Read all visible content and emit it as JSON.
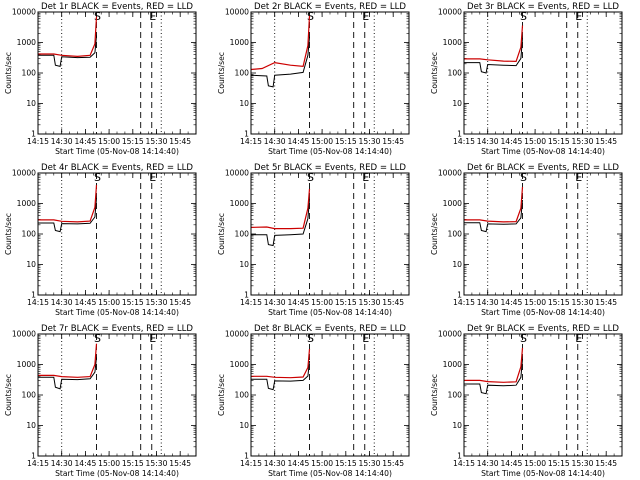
{
  "colors": {
    "background": "#ffffff",
    "events": "#000000",
    "lld": "#cc0000"
  },
  "chart_data": [
    {
      "type": "line",
      "title": "Det 1r BLACK = Events, RED = LLD",
      "xlabel": "Start Time (05-Nov-08 14:14:40)",
      "ylabel": "Counts/sec",
      "xlim": [
        "14:15",
        "15:55"
      ],
      "ylim": [
        1,
        10000
      ],
      "yscale": "log",
      "x_tick_labels": [
        "14:15",
        "14:30",
        "14:45",
        "15:00",
        "15:15",
        "15:30",
        "15:45"
      ],
      "y_tick_labels": [
        "1",
        "10",
        "100",
        "1000",
        "10000"
      ],
      "markers": [
        {
          "time": "14:30",
          "style": "dotted"
        },
        {
          "time": "14:52",
          "style": "dashed",
          "label": "S"
        },
        {
          "time": "15:20",
          "style": "dashed"
        },
        {
          "time": "15:27",
          "style": "dashed",
          "label": "E"
        },
        {
          "time": "15:33",
          "style": "dotted"
        }
      ],
      "series": [
        {
          "name": "Events",
          "color": "#000000",
          "x": [
            "14:15",
            "14:25",
            "14:26",
            "14:29",
            "14:30",
            "14:40",
            "14:48",
            "14:51",
            "14:52"
          ],
          "y": [
            380,
            380,
            180,
            165,
            340,
            320,
            330,
            460,
            1700
          ]
        },
        {
          "name": "LLD",
          "color": "#cc0000",
          "x": [
            "14:15",
            "14:25",
            "14:30",
            "14:40",
            "14:48",
            "14:51",
            "14:52"
          ],
          "y": [
            420,
            420,
            380,
            350,
            380,
            900,
            7000
          ]
        }
      ]
    },
    {
      "type": "line",
      "title": "Det 2r BLACK = Events, RED = LLD",
      "xlabel": "Start Time (05-Nov-08 14:14:40)",
      "ylabel": "Counts/sec",
      "xlim": [
        "14:15",
        "15:55"
      ],
      "ylim": [
        1,
        10000
      ],
      "yscale": "log",
      "x_tick_labels": [
        "14:15",
        "14:30",
        "14:45",
        "15:00",
        "15:15",
        "15:30",
        "15:45"
      ],
      "y_tick_labels": [
        "1",
        "10",
        "100",
        "1000",
        "10000"
      ],
      "markers": [
        {
          "time": "14:30",
          "style": "dotted"
        },
        {
          "time": "14:52",
          "style": "dashed",
          "label": "S"
        },
        {
          "time": "15:20",
          "style": "dashed"
        },
        {
          "time": "15:27",
          "style": "dashed",
          "label": "E"
        },
        {
          "time": "15:33",
          "style": "dotted"
        }
      ],
      "series": [
        {
          "name": "Events",
          "color": "#000000",
          "x": [
            "14:15",
            "14:25",
            "14:26",
            "14:29",
            "14:30",
            "14:40",
            "14:48",
            "14:51",
            "14:52"
          ],
          "y": [
            85,
            80,
            38,
            35,
            85,
            92,
            105,
            380,
            1500
          ]
        },
        {
          "name": "LLD",
          "color": "#cc0000",
          "x": [
            "14:15",
            "14:22",
            "14:30",
            "14:40",
            "14:48",
            "14:51",
            "14:52"
          ],
          "y": [
            130,
            140,
            220,
            180,
            165,
            800,
            7500
          ]
        }
      ]
    },
    {
      "type": "line",
      "title": "Det 3r BLACK = Events, RED = LLD",
      "xlabel": "Start Time (05-Nov-08 14:14:40)",
      "ylabel": "Counts/sec",
      "xlim": [
        "14:15",
        "15:55"
      ],
      "ylim": [
        1,
        10000
      ],
      "yscale": "log",
      "x_tick_labels": [
        "14:15",
        "14:30",
        "14:45",
        "15:00",
        "15:15",
        "15:30",
        "15:45"
      ],
      "y_tick_labels": [
        "1",
        "10",
        "100",
        "1000",
        "10000"
      ],
      "markers": [
        {
          "time": "14:30",
          "style": "dotted"
        },
        {
          "time": "14:52",
          "style": "dashed",
          "label": "S"
        },
        {
          "time": "15:20",
          "style": "dashed"
        },
        {
          "time": "15:27",
          "style": "dashed",
          "label": "E"
        },
        {
          "time": "15:33",
          "style": "dotted"
        }
      ],
      "series": [
        {
          "name": "Events",
          "color": "#000000",
          "x": [
            "14:15",
            "14:25",
            "14:26",
            "14:29",
            "14:30",
            "14:40",
            "14:48",
            "14:51",
            "14:52"
          ],
          "y": [
            220,
            220,
            110,
            100,
            190,
            180,
            175,
            300,
            1400
          ]
        },
        {
          "name": "LLD",
          "color": "#cc0000",
          "x": [
            "14:15",
            "14:25",
            "14:30",
            "14:40",
            "14:48",
            "14:51",
            "14:52"
          ],
          "y": [
            290,
            290,
            270,
            245,
            240,
            700,
            3600
          ]
        }
      ]
    },
    {
      "type": "line",
      "title": "Det 4r BLACK = Events, RED = LLD",
      "xlabel": "Start Time (05-Nov-08 14:14:40)",
      "ylabel": "Counts/sec",
      "xlim": [
        "14:15",
        "15:55"
      ],
      "ylim": [
        1,
        10000
      ],
      "yscale": "log",
      "x_tick_labels": [
        "14:15",
        "14:30",
        "14:45",
        "15:00",
        "15:15",
        "15:30",
        "15:45"
      ],
      "y_tick_labels": [
        "1",
        "10",
        "100",
        "1000",
        "10000"
      ],
      "markers": [
        {
          "time": "14:30",
          "style": "dotted"
        },
        {
          "time": "14:52",
          "style": "dashed",
          "label": "S"
        },
        {
          "time": "15:20",
          "style": "dashed"
        },
        {
          "time": "15:27",
          "style": "dashed",
          "label": "E"
        },
        {
          "time": "15:33",
          "style": "dotted"
        }
      ],
      "series": [
        {
          "name": "Events",
          "color": "#000000",
          "x": [
            "14:15",
            "14:25",
            "14:26",
            "14:29",
            "14:30",
            "14:40",
            "14:48",
            "14:51",
            "14:52"
          ],
          "y": [
            230,
            230,
            130,
            120,
            220,
            215,
            225,
            360,
            1500
          ]
        },
        {
          "name": "LLD",
          "color": "#cc0000",
          "x": [
            "14:15",
            "14:25",
            "14:30",
            "14:40",
            "14:48",
            "14:51",
            "14:52"
          ],
          "y": [
            290,
            290,
            260,
            250,
            265,
            750,
            4000
          ]
        }
      ]
    },
    {
      "type": "line",
      "title": "Det 5r BLACK = Events, RED = LLD",
      "xlabel": "Start Time (05-Nov-08 14:14:40)",
      "ylabel": "Counts/sec",
      "xlim": [
        "14:15",
        "15:55"
      ],
      "ylim": [
        1,
        10000
      ],
      "yscale": "log",
      "x_tick_labels": [
        "14:15",
        "14:30",
        "14:45",
        "15:00",
        "15:15",
        "15:30",
        "15:45"
      ],
      "y_tick_labels": [
        "1",
        "10",
        "100",
        "1000",
        "10000"
      ],
      "markers": [
        {
          "time": "14:30",
          "style": "dotted"
        },
        {
          "time": "14:52",
          "style": "dashed",
          "label": "S"
        },
        {
          "time": "15:20",
          "style": "dashed"
        },
        {
          "time": "15:27",
          "style": "dashed",
          "label": "E"
        },
        {
          "time": "15:33",
          "style": "dotted"
        }
      ],
      "series": [
        {
          "name": "Events",
          "color": "#000000",
          "x": [
            "14:15",
            "14:25",
            "14:26",
            "14:29",
            "14:30",
            "14:40",
            "14:48",
            "14:51",
            "14:52"
          ],
          "y": [
            95,
            95,
            45,
            42,
            90,
            95,
            100,
            320,
            1400
          ]
        },
        {
          "name": "LLD",
          "color": "#cc0000",
          "x": [
            "14:15",
            "14:25",
            "14:30",
            "14:40",
            "14:48",
            "14:51",
            "14:52"
          ],
          "y": [
            165,
            170,
            150,
            150,
            155,
            700,
            3000
          ]
        }
      ]
    },
    {
      "type": "line",
      "title": "Det 6r BLACK = Events, RED = LLD",
      "xlabel": "Start Time (05-Nov-08 14:14:40)",
      "ylabel": "Counts/sec",
      "xlim": [
        "14:15",
        "15:55"
      ],
      "ylim": [
        1,
        10000
      ],
      "yscale": "log",
      "x_tick_labels": [
        "14:15",
        "14:30",
        "14:45",
        "15:00",
        "15:15",
        "15:30",
        "15:45"
      ],
      "y_tick_labels": [
        "1",
        "10",
        "100",
        "1000",
        "10000"
      ],
      "markers": [
        {
          "time": "14:30",
          "style": "dotted"
        },
        {
          "time": "14:52",
          "style": "dashed",
          "label": "S"
        },
        {
          "time": "15:20",
          "style": "dashed"
        },
        {
          "time": "15:27",
          "style": "dashed",
          "label": "E"
        },
        {
          "time": "15:33",
          "style": "dotted"
        }
      ],
      "series": [
        {
          "name": "Events",
          "color": "#000000",
          "x": [
            "14:15",
            "14:25",
            "14:26",
            "14:29",
            "14:30",
            "14:40",
            "14:48",
            "14:51",
            "14:52"
          ],
          "y": [
            235,
            235,
            130,
            120,
            215,
            210,
            215,
            340,
            1300
          ]
        },
        {
          "name": "LLD",
          "color": "#cc0000",
          "x": [
            "14:15",
            "14:25",
            "14:30",
            "14:40",
            "14:48",
            "14:51",
            "14:52"
          ],
          "y": [
            290,
            290,
            265,
            250,
            255,
            700,
            3500
          ]
        }
      ]
    },
    {
      "type": "line",
      "title": "Det 7r BLACK = Events, RED = LLD",
      "xlabel": "Start Time (05-Nov-08 14:14:40)",
      "ylabel": "Counts/sec",
      "xlim": [
        "14:15",
        "15:55"
      ],
      "ylim": [
        1,
        10000
      ],
      "yscale": "log",
      "x_tick_labels": [
        "14:15",
        "14:30",
        "14:45",
        "15:00",
        "15:15",
        "15:30",
        "15:45"
      ],
      "y_tick_labels": [
        "1",
        "10",
        "100",
        "1000",
        "10000"
      ],
      "markers": [
        {
          "time": "14:30",
          "style": "dotted"
        },
        {
          "time": "14:52",
          "style": "dashed",
          "label": "S"
        },
        {
          "time": "15:20",
          "style": "dashed"
        },
        {
          "time": "15:27",
          "style": "dashed",
          "label": "E"
        },
        {
          "time": "15:33",
          "style": "dotted"
        }
      ],
      "series": [
        {
          "name": "Events",
          "color": "#000000",
          "x": [
            "14:15",
            "14:25",
            "14:26",
            "14:29",
            "14:30",
            "14:40",
            "14:48",
            "14:51",
            "14:52"
          ],
          "y": [
            380,
            380,
            180,
            160,
            330,
            320,
            340,
            560,
            1700
          ]
        },
        {
          "name": "LLD",
          "color": "#cc0000",
          "x": [
            "14:15",
            "14:25",
            "14:30",
            "14:40",
            "14:48",
            "14:51",
            "14:52"
          ],
          "y": [
            440,
            440,
            400,
            380,
            400,
            1000,
            4800
          ]
        }
      ]
    },
    {
      "type": "line",
      "title": "Det 8r BLACK = Events, RED = LLD",
      "xlabel": "Start Time (05-Nov-08 14:14:40)",
      "ylabel": "Counts/sec",
      "xlim": [
        "14:15",
        "15:55"
      ],
      "ylim": [
        1,
        10000
      ],
      "yscale": "log",
      "x_tick_labels": [
        "14:15",
        "14:30",
        "14:45",
        "15:00",
        "15:15",
        "15:30",
        "15:45"
      ],
      "y_tick_labels": [
        "1",
        "10",
        "100",
        "1000",
        "10000"
      ],
      "markers": [
        {
          "time": "14:30",
          "style": "dotted"
        },
        {
          "time": "14:52",
          "style": "dashed",
          "label": "S"
        },
        {
          "time": "15:20",
          "style": "dashed"
        },
        {
          "time": "15:27",
          "style": "dashed",
          "label": "E"
        },
        {
          "time": "15:33",
          "style": "dotted"
        }
      ],
      "series": [
        {
          "name": "Events",
          "color": "#000000",
          "x": [
            "14:15",
            "14:25",
            "14:26",
            "14:29",
            "14:30",
            "14:40",
            "14:48",
            "14:51",
            "14:52"
          ],
          "y": [
            330,
            330,
            165,
            150,
            290,
            285,
            300,
            420,
            1300
          ]
        },
        {
          "name": "LLD",
          "color": "#cc0000",
          "x": [
            "14:15",
            "14:25",
            "14:30",
            "14:40",
            "14:48",
            "14:51",
            "14:52"
          ],
          "y": [
            410,
            410,
            380,
            370,
            390,
            800,
            3200
          ]
        }
      ]
    },
    {
      "type": "line",
      "title": "Det 9r BLACK = Events, RED = LLD",
      "xlabel": "Start Time (05-Nov-08 14:14:40)",
      "ylabel": "Counts/sec",
      "xlim": [
        "14:15",
        "15:55"
      ],
      "ylim": [
        1,
        10000
      ],
      "yscale": "log",
      "x_tick_labels": [
        "14:15",
        "14:30",
        "14:45",
        "15:00",
        "15:15",
        "15:30",
        "15:45"
      ],
      "y_tick_labels": [
        "1",
        "10",
        "100",
        "1000",
        "10000"
      ],
      "markers": [
        {
          "time": "14:30",
          "style": "dotted"
        },
        {
          "time": "14:52",
          "style": "dashed",
          "label": "S"
        },
        {
          "time": "15:20",
          "style": "dashed"
        },
        {
          "time": "15:27",
          "style": "dashed",
          "label": "E"
        },
        {
          "time": "15:33",
          "style": "dotted"
        }
      ],
      "series": [
        {
          "name": "Events",
          "color": "#000000",
          "x": [
            "14:15",
            "14:25",
            "14:26",
            "14:29",
            "14:30",
            "14:40",
            "14:48",
            "14:51",
            "14:52"
          ],
          "y": [
            230,
            230,
            120,
            110,
            210,
            200,
            210,
            380,
            1500
          ]
        },
        {
          "name": "LLD",
          "color": "#cc0000",
          "x": [
            "14:15",
            "14:25",
            "14:30",
            "14:40",
            "14:48",
            "14:51",
            "14:52"
          ],
          "y": [
            300,
            300,
            275,
            260,
            270,
            850,
            3500
          ]
        }
      ]
    }
  ]
}
